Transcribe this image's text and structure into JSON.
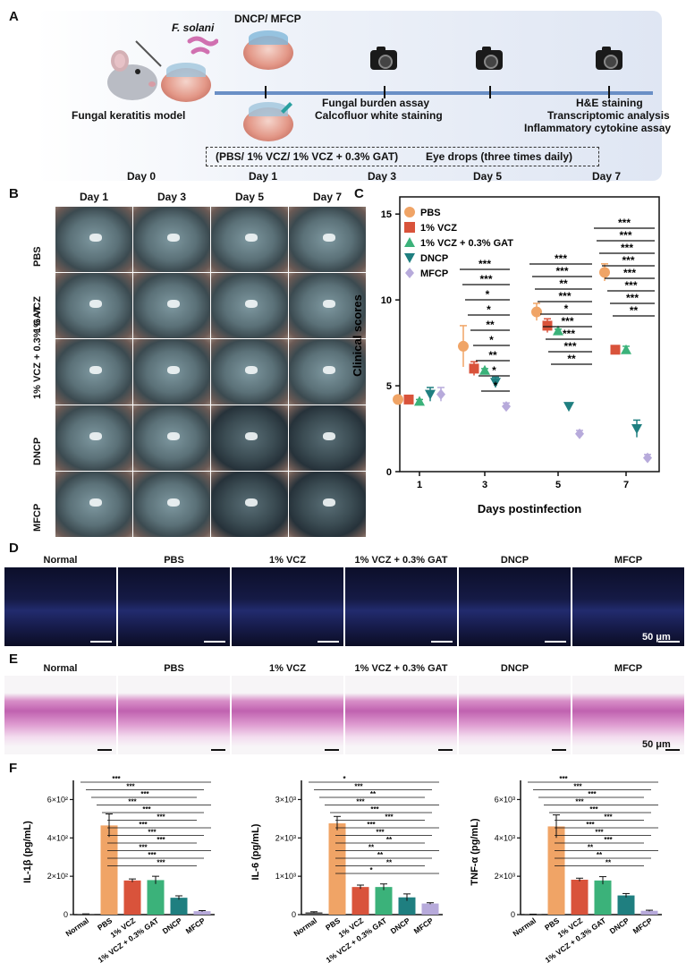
{
  "panel_letters": {
    "a": "A",
    "b": "B",
    "c": "C",
    "d": "D",
    "e": "E",
    "f": "F"
  },
  "panelA": {
    "pathogen": "F. solani",
    "treatment_top": "DNCP/ MFCP",
    "model_label": "Fungal keratitis model",
    "assay_day3_line1": "Fungal burden assay",
    "assay_day3_line2": "Calcofluor white staining",
    "assay_day7_line1": "H&E staining",
    "assay_day7_line2": "Transcriptomic analysis",
    "assay_day7_line3": "Inflammatory cytokine assay",
    "eye_drops_groups": "(PBS/ 1% VCZ/ 1% VCZ + 0.3% GAT)",
    "eye_drops_note": "Eye drops (three times daily)",
    "days": [
      "Day 0",
      "Day 1",
      "Day 3",
      "Day 5",
      "Day 7"
    ]
  },
  "panelB": {
    "columns": [
      "Day 1",
      "Day 3",
      "Day 5",
      "Day 7"
    ],
    "rows": [
      "PBS",
      "1% VCZ",
      "1% VCZ + 0.3% GAT",
      "DNCP",
      "MFCP"
    ]
  },
  "strip_groups": [
    "Normal",
    "PBS",
    "1% VCZ",
    "1% VCZ + 0.3% GAT",
    "DNCP",
    "MFCP"
  ],
  "scale_label": "50 μm",
  "colors": {
    "PBS": "#f0a466",
    "VCZ": "#d9533b",
    "GAT": "#3bb27a",
    "DNCP": "#1f7f80",
    "MFCP": "#b7aadb"
  },
  "chart_data": [
    {
      "type": "scatter",
      "panel": "C",
      "xlabel": "Days postinfection",
      "ylabel": "Clinical scores",
      "categories": [
        "1",
        "3",
        "5",
        "7"
      ],
      "ylim": [
        0,
        16
      ],
      "yticks": [
        "0",
        "5",
        "10",
        "15"
      ],
      "legend_position": "top-left",
      "series": [
        {
          "name": "PBS",
          "marker": "circle",
          "values": [
            4.2,
            7.3,
            9.3,
            11.6
          ],
          "errors": [
            0.2,
            1.2,
            0.5,
            0.5
          ]
        },
        {
          "name": "1% VCZ",
          "marker": "square",
          "values": [
            4.2,
            6.0,
            8.5,
            7.1
          ],
          "errors": [
            0.15,
            0.4,
            0.4,
            0.15
          ]
        },
        {
          "name": "1% VCZ + 0.3% GAT",
          "marker": "triangle-up",
          "values": [
            4.1,
            5.9,
            8.2,
            7.1
          ],
          "errors": [
            0.1,
            0.1,
            0.1,
            0.2
          ]
        },
        {
          "name": "DNCP",
          "marker": "triangle-down",
          "values": [
            4.5,
            5.2,
            3.8,
            2.5
          ],
          "errors": [
            0.4,
            0.3,
            0.1,
            0.5
          ]
        },
        {
          "name": "MFCP",
          "marker": "diamond",
          "values": [
            4.5,
            3.8,
            2.2,
            0.8
          ],
          "errors": [
            0.4,
            0.2,
            0.2,
            0.2
          ]
        }
      ],
      "significance": [
        {
          "day": "3",
          "labels": [
            "***",
            "***",
            "*",
            "*",
            "**",
            "*",
            "**",
            "*",
            "*"
          ]
        },
        {
          "day": "5",
          "labels": [
            "***",
            "***",
            "**",
            "***",
            "*",
            "***",
            "***",
            "***",
            "**"
          ]
        },
        {
          "day": "7",
          "labels": [
            "***",
            "***",
            "***",
            "***",
            "***",
            "***",
            "***",
            "**"
          ]
        }
      ]
    },
    {
      "type": "bar",
      "panel": "F1",
      "ylabel": "IL-1β (pg/mL)",
      "categories": [
        "Normal",
        "PBS",
        "1% VCZ",
        "1% VCZ + 0.3% GAT",
        "DNCP",
        "MFCP"
      ],
      "values": [
        3,
        465,
        178,
        180,
        88,
        18
      ],
      "errors": [
        1,
        60,
        8,
        20,
        10,
        3
      ],
      "yticks": [
        "0",
        "2×10²",
        "4×10²",
        "6×10²"
      ],
      "ylim": [
        0,
        700
      ],
      "significance": [
        "***",
        "***",
        "***",
        "***",
        "***",
        "***",
        "***",
        "***",
        "***",
        "***",
        "***",
        "***"
      ]
    },
    {
      "type": "bar",
      "panel": "F2",
      "ylabel": "IL-6 (pg/mL)",
      "categories": [
        "Normal",
        "PBS",
        "1% VCZ",
        "1% VCZ + 0.3% GAT",
        "DNCP",
        "MFCP"
      ],
      "values": [
        60,
        2380,
        720,
        720,
        450,
        290
      ],
      "errors": [
        15,
        180,
        50,
        80,
        90,
        20
      ],
      "yticks": [
        "0",
        "1×10³",
        "2×10³",
        "3×10³"
      ],
      "ylim": [
        0,
        3500
      ],
      "significance": [
        "*",
        "***",
        "**",
        "***",
        "***",
        "***",
        "***",
        "***",
        "**",
        "**",
        "**",
        "**",
        "*"
      ]
    },
    {
      "type": "bar",
      "panel": "F3",
      "ylabel": "TNF-α (pg/mL)",
      "categories": [
        "Normal",
        "PBS",
        "1% VCZ",
        "1% VCZ + 0.3% GAT",
        "DNCP",
        "MFCP"
      ],
      "values": [
        20,
        4600,
        1820,
        1780,
        1000,
        200
      ],
      "errors": [
        5,
        600,
        80,
        200,
        100,
        30
      ],
      "yticks": [
        "0",
        "2×10³",
        "4×10³",
        "6×10³"
      ],
      "ylim": [
        0,
        7000
      ],
      "significance": [
        "***",
        "***",
        "***",
        "***",
        "***",
        "***",
        "***",
        "***",
        "***",
        "**",
        "**",
        "**"
      ]
    }
  ]
}
